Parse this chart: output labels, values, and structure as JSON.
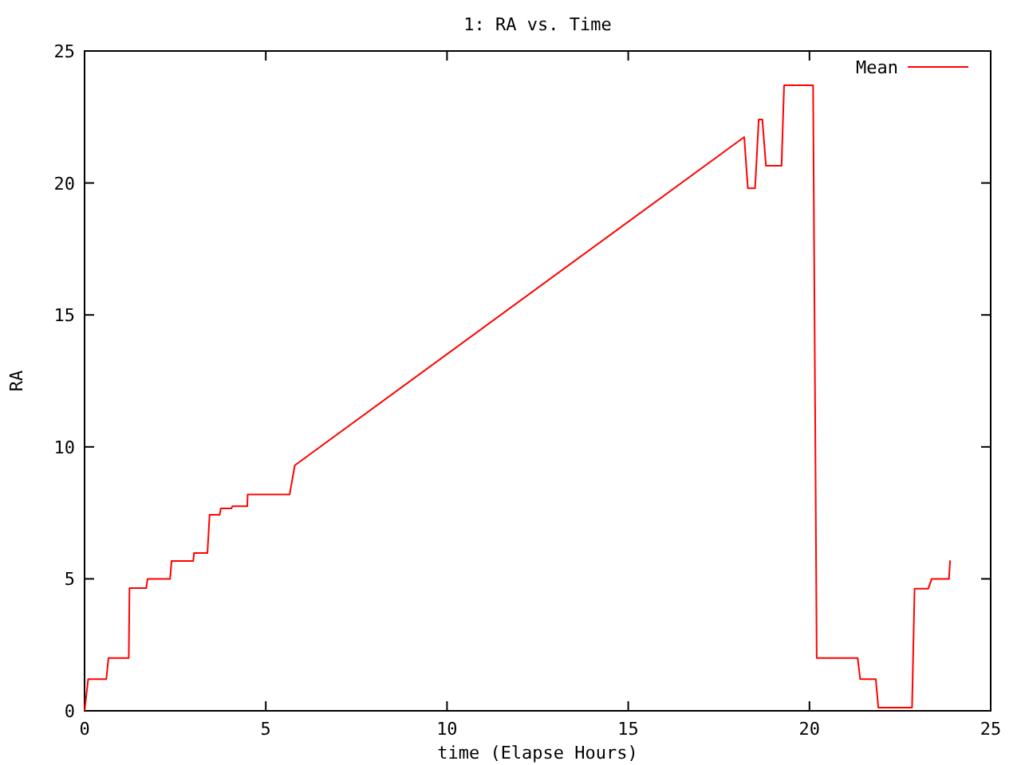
{
  "chart_data": {
    "type": "line",
    "title": "1: RA vs. Time",
    "xlabel": "time (Elapse Hours)",
    "ylabel": "RA",
    "xlim": [
      0,
      25
    ],
    "ylim": [
      0,
      25
    ],
    "xticks": [
      0,
      5,
      10,
      15,
      20,
      25
    ],
    "yticks": [
      0,
      5,
      10,
      15,
      20,
      25
    ],
    "grid": false,
    "legend": "top right",
    "series": [
      {
        "name": "Mean",
        "color": "#ff0000",
        "x": [
          0,
          0.1,
          0.6,
          0.66,
          1.22,
          1.24,
          1.7,
          1.74,
          2.36,
          2.4,
          3.0,
          3.02,
          3.39,
          3.45,
          3.73,
          3.76,
          4.05,
          4.08,
          4.49,
          4.5,
          5.66,
          5.8,
          18.2,
          18.3,
          18.5,
          18.6,
          18.7,
          18.8,
          19.23,
          19.3,
          20.1,
          20.2,
          21.33,
          21.4,
          21.83,
          21.9,
          22.83,
          22.9,
          23.28,
          23.37,
          23.85,
          23.88
        ],
        "values": [
          0,
          1.2,
          1.2,
          2.0,
          2.0,
          4.65,
          4.65,
          5.0,
          5.0,
          5.68,
          5.68,
          5.98,
          5.98,
          7.43,
          7.43,
          7.67,
          7.67,
          7.75,
          7.75,
          8.2,
          8.2,
          9.3,
          21.74,
          19.8,
          19.8,
          22.4,
          22.4,
          20.65,
          20.65,
          23.7,
          23.7,
          2.0,
          2.0,
          1.2,
          1.2,
          0.12,
          0.12,
          4.63,
          4.63,
          5.0,
          5.0,
          5.7
        ]
      }
    ]
  }
}
